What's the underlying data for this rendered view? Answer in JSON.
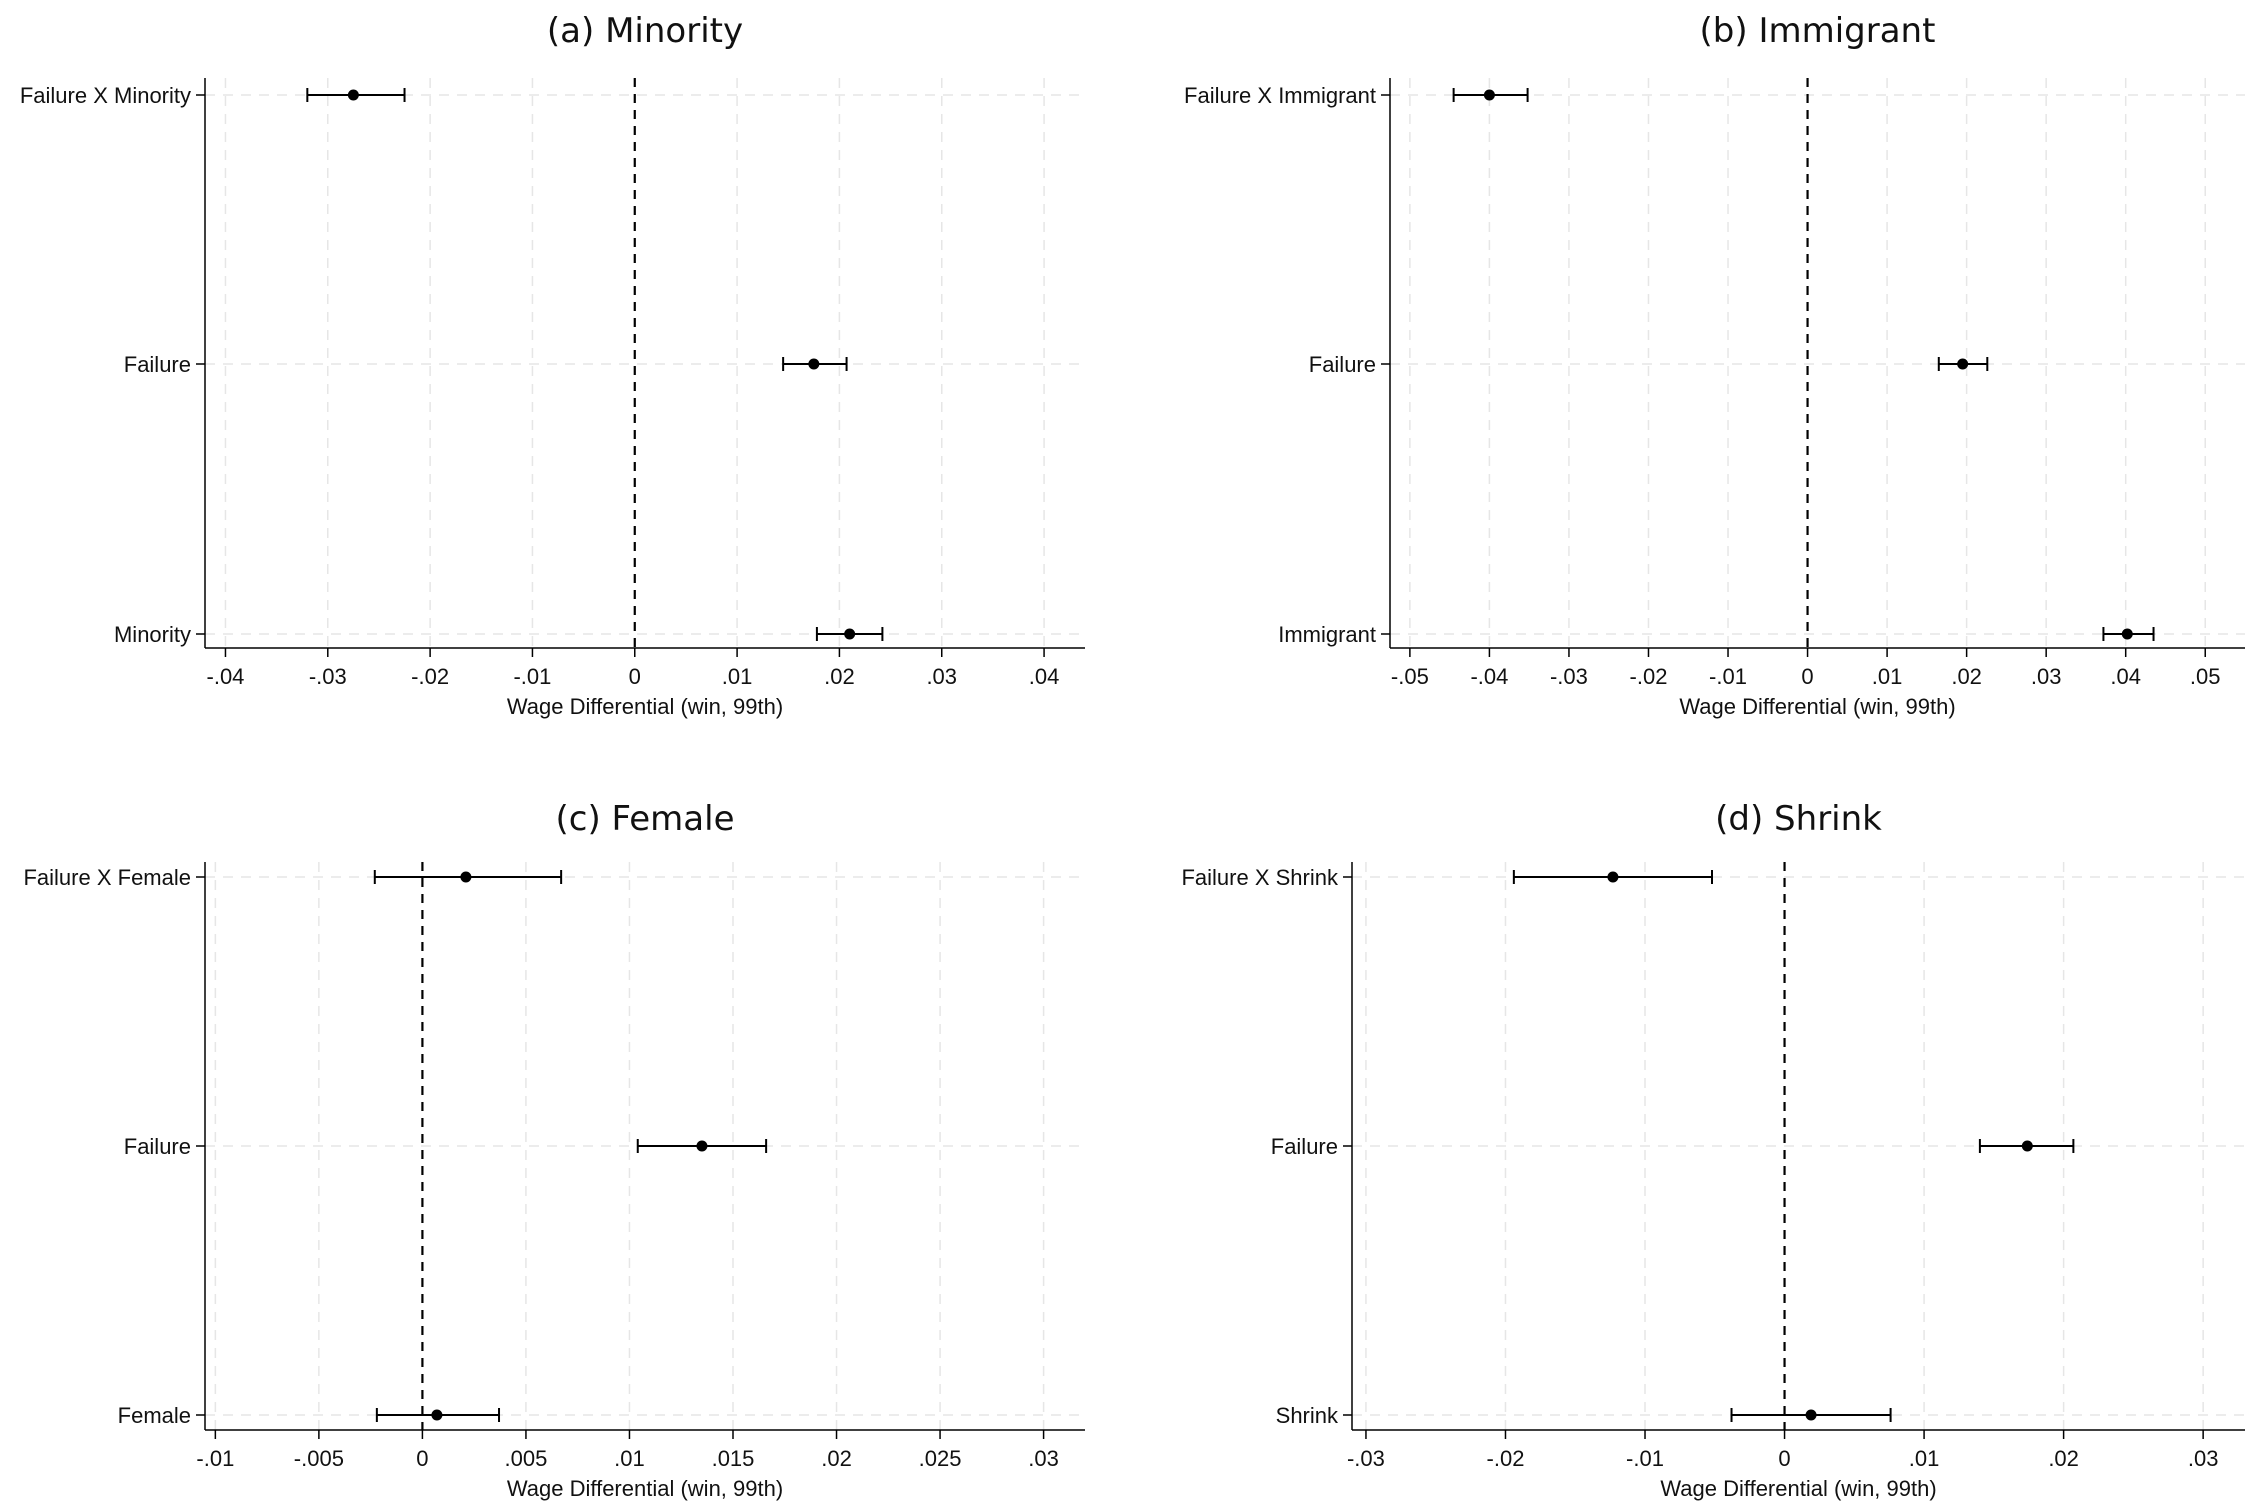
{
  "chart_data": [
    {
      "type": "coefficient_plot",
      "title": "(a) Minority",
      "xlabel": "Wage Differential (win, 99th)",
      "xlim": [
        -0.042,
        0.044
      ],
      "x_ticks": [
        -0.04,
        -0.03,
        -0.02,
        -0.01,
        0,
        0.01,
        0.02,
        0.03,
        0.04
      ],
      "x_tick_labels": [
        "-.04",
        "-.03",
        "-.02",
        "-.01",
        "0",
        ".01",
        ".02",
        ".03",
        ".04"
      ],
      "reference_line": 0,
      "categories": [
        "Failure X Minority",
        "Failure",
        "Minority"
      ],
      "estimates": [
        -0.0275,
        0.0175,
        0.021
      ],
      "ci_low": [
        -0.032,
        0.0145,
        0.0178
      ],
      "ci_high": [
        -0.0225,
        0.0207,
        0.0242
      ]
    },
    {
      "type": "coefficient_plot",
      "title": "(b) Immigrant",
      "xlabel": "Wage Differential (win, 99th)",
      "xlim": [
        -0.0525,
        0.055
      ],
      "x_ticks": [
        -0.05,
        -0.04,
        -0.03,
        -0.02,
        -0.01,
        0,
        0.01,
        0.02,
        0.03,
        0.04,
        0.05
      ],
      "x_tick_labels": [
        "-.05",
        "-.04",
        "-.03",
        "-.02",
        "-.01",
        "0",
        ".01",
        ".02",
        ".03",
        ".04",
        ".05"
      ],
      "reference_line": 0,
      "categories": [
        "Failure X Immigrant",
        "Failure",
        "Immigrant"
      ],
      "estimates": [
        -0.04,
        0.0195,
        0.0402
      ],
      "ci_low": [
        -0.0445,
        0.0165,
        0.0372
      ],
      "ci_high": [
        -0.0352,
        0.0226,
        0.0435
      ]
    },
    {
      "type": "coefficient_plot",
      "title": "(c) Female",
      "xlabel": "Wage Differential (win, 99th)",
      "xlim": [
        -0.0105,
        0.032
      ],
      "x_ticks": [
        -0.01,
        -0.005,
        0,
        0.005,
        0.01,
        0.015,
        0.02,
        0.025,
        0.03
      ],
      "x_tick_labels": [
        "-.01",
        "-.005",
        "0",
        ".005",
        ".01",
        ".015",
        ".02",
        ".025",
        ".03"
      ],
      "reference_line": 0,
      "categories": [
        "Failure X Female",
        "Failure",
        "Female"
      ],
      "estimates": [
        0.0021,
        0.0135,
        0.0007
      ],
      "ci_low": [
        -0.0023,
        0.0104,
        -0.0022
      ],
      "ci_high": [
        0.0067,
        0.0166,
        0.0037
      ]
    },
    {
      "type": "coefficient_plot",
      "title": "(d) Shrink",
      "xlabel": "Wage Differential (win, 99th)",
      "xlim": [
        -0.031,
        0.033
      ],
      "x_ticks": [
        -0.03,
        -0.02,
        -0.01,
        0,
        0.01,
        0.02,
        0.03
      ],
      "x_tick_labels": [
        "-.03",
        "-.02",
        "-.01",
        "0",
        ".01",
        ".02",
        ".03"
      ],
      "reference_line": 0,
      "categories": [
        "Failure X Shrink",
        "Failure",
        "Shrink"
      ],
      "estimates": [
        -0.0123,
        0.0174,
        0.0019
      ],
      "ci_low": [
        -0.0194,
        0.014,
        -0.0038
      ],
      "ci_high": [
        -0.0052,
        0.0207,
        0.0076
      ]
    }
  ]
}
